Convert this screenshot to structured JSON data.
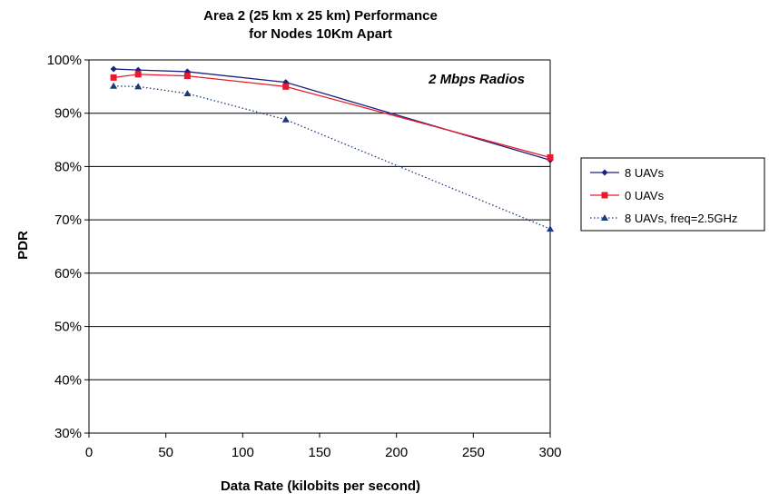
{
  "chart_data": {
    "type": "line",
    "title_lines": [
      "Area 2 (25 km x 25 km) Performance",
      "for Nodes 10Km Apart"
    ],
    "xlabel": "Data Rate (kilobits per second)",
    "ylabel": "PDR",
    "annotation": "2 Mbps Radios",
    "xlim": [
      0,
      300
    ],
    "ylim": [
      0.3,
      1.0
    ],
    "x_ticks": [
      0,
      50,
      100,
      150,
      200,
      250,
      300
    ],
    "y_ticks": [
      0.3,
      0.4,
      0.5,
      0.6,
      0.7,
      0.8,
      0.9,
      1.0
    ],
    "y_tick_labels": [
      "30%",
      "40%",
      "50%",
      "60%",
      "70%",
      "80%",
      "90%",
      "100%"
    ],
    "grid": "horizontal",
    "legend_position": "right",
    "series": [
      {
        "name": "8 UAVs",
        "color": "#1a237e",
        "marker": "diamond",
        "dash": "solid",
        "x": [
          16,
          32,
          64,
          128,
          300
        ],
        "y": [
          0.983,
          0.981,
          0.978,
          0.958,
          0.812
        ]
      },
      {
        "name": "0 UAVs",
        "color": "#e8192c",
        "marker": "square",
        "dash": "solid",
        "x": [
          16,
          32,
          64,
          128,
          300
        ],
        "y": [
          0.967,
          0.973,
          0.97,
          0.95,
          0.817
        ]
      },
      {
        "name": "8 UAVs, freq=2.5GHz",
        "color": "#1a3a7a",
        "marker": "triangle",
        "dash": "dotted",
        "x": [
          16,
          32,
          64,
          128,
          300
        ],
        "y": [
          0.951,
          0.95,
          0.937,
          0.888,
          0.683
        ]
      }
    ]
  }
}
